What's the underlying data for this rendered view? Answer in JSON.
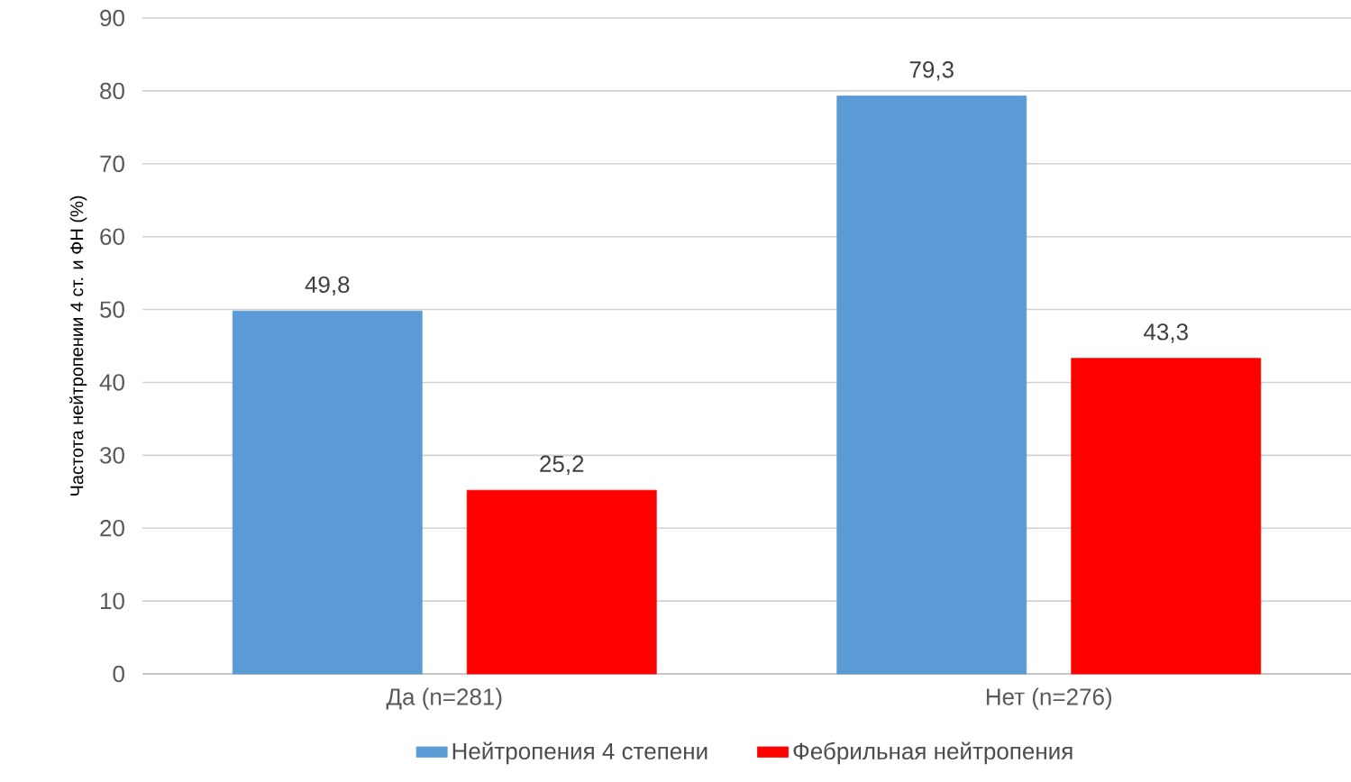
{
  "chart_data": {
    "type": "bar",
    "ylabel": "Частота нейтропении 4 ст. и ФН (%)",
    "categories": [
      "Да (n=281)",
      "Нет (n=276)"
    ],
    "series": [
      {
        "name": "Нейтропения 4 степени",
        "color": "#5b9bd5",
        "values": [
          49.8,
          79.3
        ],
        "value_labels": [
          "49,8",
          "79,3"
        ]
      },
      {
        "name": "Фебрильная нейтропения",
        "color": "#ff0000",
        "values": [
          25.2,
          43.3
        ],
        "value_labels": [
          "25,2",
          "43,3"
        ]
      }
    ],
    "ylim": [
      0,
      90
    ],
    "yticks": [
      0,
      10,
      20,
      30,
      40,
      50,
      60,
      70,
      80,
      90
    ],
    "grid": "y",
    "legend": "bottom"
  }
}
